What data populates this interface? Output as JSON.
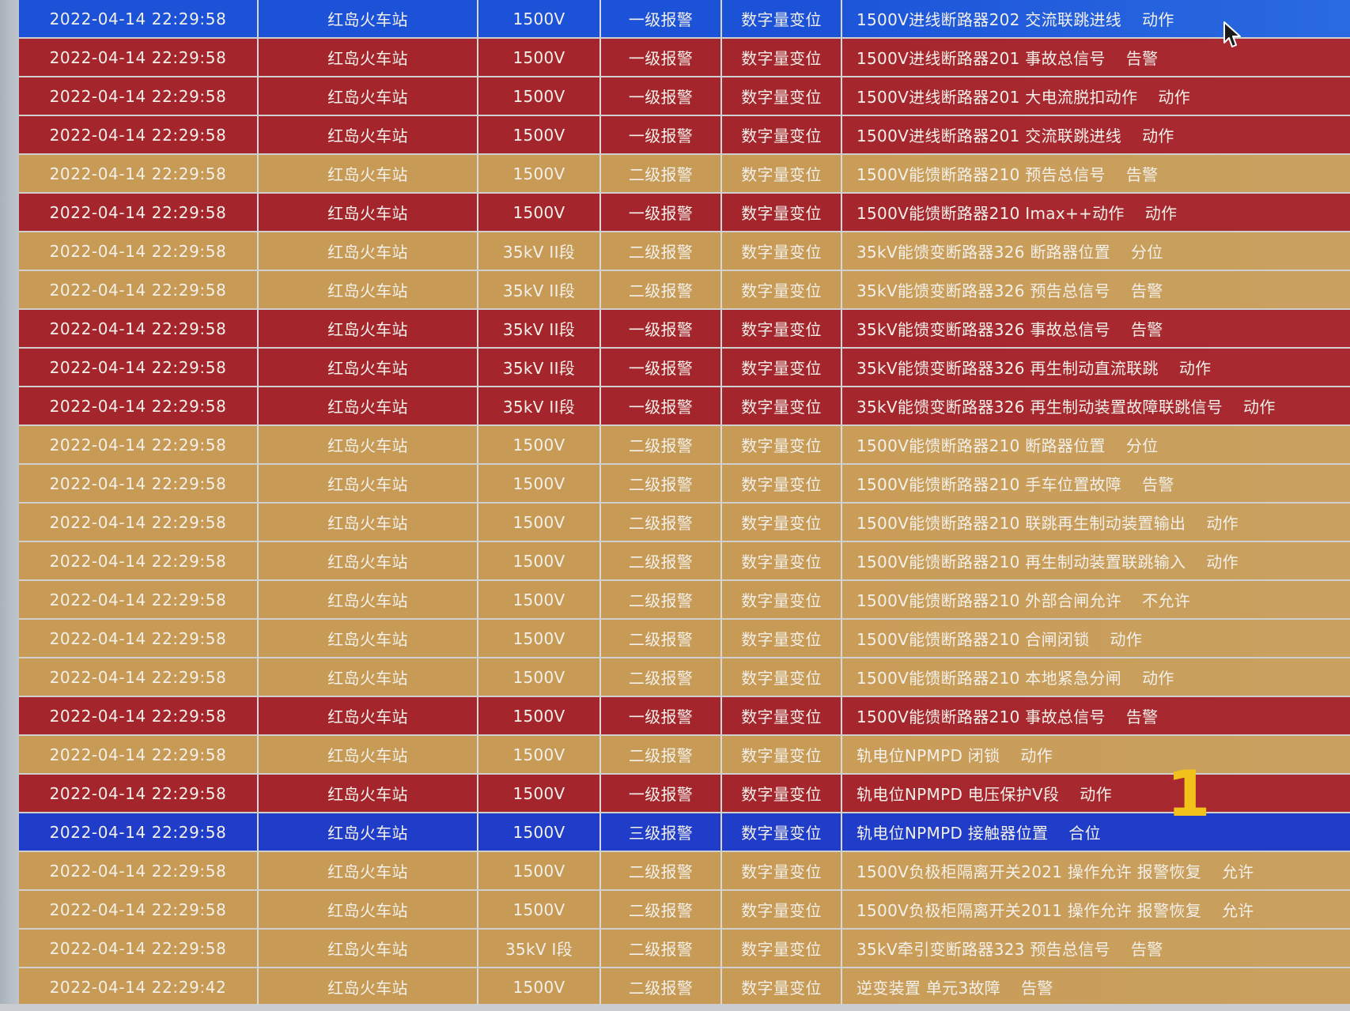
{
  "colors": {
    "level1": "#a5252c",
    "level2": "#c79a55",
    "level3": "#1f3dc8",
    "selected": "#1c52d8",
    "overlay_mark": "#f2c21a"
  },
  "overlay_mark": "1",
  "rows": [
    {
      "level_class": "sel",
      "time": "2022-04-14 22:29:58",
      "station": "红岛火车站",
      "voltage": "1500V",
      "level": "一级报警",
      "type": "数字量变位",
      "desc": "1500V进线断路器202 交流联跳进线",
      "state": "动作"
    },
    {
      "level_class": "red",
      "time": "2022-04-14 22:29:58",
      "station": "红岛火车站",
      "voltage": "1500V",
      "level": "一级报警",
      "type": "数字量变位",
      "desc": "1500V进线断路器201 事故总信号",
      "state": "告警"
    },
    {
      "level_class": "red",
      "time": "2022-04-14 22:29:58",
      "station": "红岛火车站",
      "voltage": "1500V",
      "level": "一级报警",
      "type": "数字量变位",
      "desc": "1500V进线断路器201 大电流脱扣动作",
      "state": "动作"
    },
    {
      "level_class": "red",
      "time": "2022-04-14 22:29:58",
      "station": "红岛火车站",
      "voltage": "1500V",
      "level": "一级报警",
      "type": "数字量变位",
      "desc": "1500V进线断路器201 交流联跳进线",
      "state": "动作"
    },
    {
      "level_class": "orange",
      "time": "2022-04-14 22:29:58",
      "station": "红岛火车站",
      "voltage": "1500V",
      "level": "二级报警",
      "type": "数字量变位",
      "desc": "1500V能馈断路器210 预告总信号",
      "state": "告警"
    },
    {
      "level_class": "red",
      "time": "2022-04-14 22:29:58",
      "station": "红岛火车站",
      "voltage": "1500V",
      "level": "一级报警",
      "type": "数字量变位",
      "desc": "1500V能馈断路器210 Imax++动作",
      "state": "动作"
    },
    {
      "level_class": "orange",
      "time": "2022-04-14 22:29:58",
      "station": "红岛火车站",
      "voltage": "35kV II段",
      "level": "二级报警",
      "type": "数字量变位",
      "desc": "35kV能馈变断路器326 断路器位置",
      "state": "分位"
    },
    {
      "level_class": "orange",
      "time": "2022-04-14 22:29:58",
      "station": "红岛火车站",
      "voltage": "35kV II段",
      "level": "二级报警",
      "type": "数字量变位",
      "desc": "35kV能馈变断路器326 预告总信号",
      "state": "告警"
    },
    {
      "level_class": "red",
      "time": "2022-04-14 22:29:58",
      "station": "红岛火车站",
      "voltage": "35kV II段",
      "level": "一级报警",
      "type": "数字量变位",
      "desc": "35kV能馈变断路器326 事故总信号",
      "state": "告警"
    },
    {
      "level_class": "red",
      "time": "2022-04-14 22:29:58",
      "station": "红岛火车站",
      "voltage": "35kV II段",
      "level": "一级报警",
      "type": "数字量变位",
      "desc": "35kV能馈变断路器326 再生制动直流联跳",
      "state": "动作"
    },
    {
      "level_class": "red",
      "time": "2022-04-14 22:29:58",
      "station": "红岛火车站",
      "voltage": "35kV II段",
      "level": "一级报警",
      "type": "数字量变位",
      "desc": "35kV能馈变断路器326 再生制动装置故障联跳信号",
      "state": "动作"
    },
    {
      "level_class": "orange",
      "time": "2022-04-14 22:29:58",
      "station": "红岛火车站",
      "voltage": "1500V",
      "level": "二级报警",
      "type": "数字量变位",
      "desc": "1500V能馈断路器210 断路器位置",
      "state": "分位"
    },
    {
      "level_class": "orange",
      "time": "2022-04-14 22:29:58",
      "station": "红岛火车站",
      "voltage": "1500V",
      "level": "二级报警",
      "type": "数字量变位",
      "desc": "1500V能馈断路器210 手车位置故障",
      "state": "告警"
    },
    {
      "level_class": "orange",
      "time": "2022-04-14 22:29:58",
      "station": "红岛火车站",
      "voltage": "1500V",
      "level": "二级报警",
      "type": "数字量变位",
      "desc": "1500V能馈断路器210 联跳再生制动装置输出",
      "state": "动作"
    },
    {
      "level_class": "orange",
      "time": "2022-04-14 22:29:58",
      "station": "红岛火车站",
      "voltage": "1500V",
      "level": "二级报警",
      "type": "数字量变位",
      "desc": "1500V能馈断路器210 再生制动装置联跳输入",
      "state": "动作"
    },
    {
      "level_class": "orange",
      "time": "2022-04-14 22:29:58",
      "station": "红岛火车站",
      "voltage": "1500V",
      "level": "二级报警",
      "type": "数字量变位",
      "desc": "1500V能馈断路器210 外部合闸允许",
      "state": "不允许"
    },
    {
      "level_class": "orange",
      "time": "2022-04-14 22:29:58",
      "station": "红岛火车站",
      "voltage": "1500V",
      "level": "二级报警",
      "type": "数字量变位",
      "desc": "1500V能馈断路器210 合闸闭锁",
      "state": "动作"
    },
    {
      "level_class": "orange",
      "time": "2022-04-14 22:29:58",
      "station": "红岛火车站",
      "voltage": "1500V",
      "level": "二级报警",
      "type": "数字量变位",
      "desc": "1500V能馈断路器210 本地紧急分闸",
      "state": "动作"
    },
    {
      "level_class": "red",
      "time": "2022-04-14 22:29:58",
      "station": "红岛火车站",
      "voltage": "1500V",
      "level": "一级报警",
      "type": "数字量变位",
      "desc": "1500V能馈断路器210 事故总信号",
      "state": "告警"
    },
    {
      "level_class": "orange",
      "time": "2022-04-14 22:29:58",
      "station": "红岛火车站",
      "voltage": "1500V",
      "level": "二级报警",
      "type": "数字量变位",
      "desc": "轨电位NPMPD 闭锁",
      "state": "动作"
    },
    {
      "level_class": "red",
      "time": "2022-04-14 22:29:58",
      "station": "红岛火车站",
      "voltage": "1500V",
      "level": "一级报警",
      "type": "数字量变位",
      "desc": "轨电位NPMPD 电压保护V段",
      "state": "动作"
    },
    {
      "level_class": "blue",
      "time": "2022-04-14 22:29:58",
      "station": "红岛火车站",
      "voltage": "1500V",
      "level": "三级报警",
      "type": "数字量变位",
      "desc": "轨电位NPMPD 接触器位置",
      "state": "合位"
    },
    {
      "level_class": "orange",
      "time": "2022-04-14 22:29:58",
      "station": "红岛火车站",
      "voltage": "1500V",
      "level": "二级报警",
      "type": "数字量变位",
      "desc": "1500V负极柜隔离开关2021 操作允许 报警恢复",
      "state": "允许"
    },
    {
      "level_class": "orange",
      "time": "2022-04-14 22:29:58",
      "station": "红岛火车站",
      "voltage": "1500V",
      "level": "二级报警",
      "type": "数字量变位",
      "desc": "1500V负极柜隔离开关2011 操作允许 报警恢复",
      "state": "允许"
    },
    {
      "level_class": "orange",
      "time": "2022-04-14 22:29:58",
      "station": "红岛火车站",
      "voltage": "35kV I段",
      "level": "二级报警",
      "type": "数字量变位",
      "desc": "35kV牵引变断路器323 预告总信号",
      "state": "告警"
    },
    {
      "level_class": "orange",
      "time": "2022-04-14 22:29:42",
      "station": "红岛火车站",
      "voltage": "1500V",
      "level": "二级报警",
      "type": "数字量变位",
      "desc": "逆变装置 单元3故障",
      "state": "告警"
    }
  ]
}
